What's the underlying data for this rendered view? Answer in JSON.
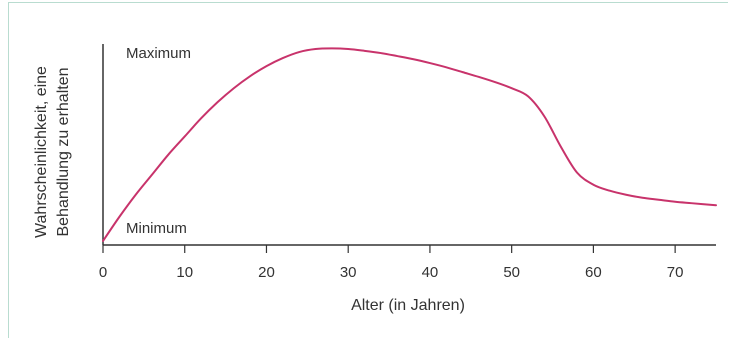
{
  "chart_data": {
    "type": "line",
    "xlabel": "Alter (in Jahren)",
    "ylabel_line1": "Wahrscheinlichkeit, eine",
    "ylabel_line2": "Behandlung zu erhalten",
    "x_ticks": [
      0,
      10,
      20,
      30,
      40,
      50,
      60,
      70
    ],
    "xlim": [
      0,
      75
    ],
    "ylim": [
      0,
      1
    ],
    "y_level_labels": {
      "max": "Maximum",
      "min": "Minimum"
    },
    "series": [
      {
        "color": "#c8336b",
        "points": [
          [
            0,
            0.02
          ],
          [
            2,
            0.14
          ],
          [
            4,
            0.25
          ],
          [
            6,
            0.35
          ],
          [
            8,
            0.45
          ],
          [
            10,
            0.54
          ],
          [
            12,
            0.63
          ],
          [
            14,
            0.71
          ],
          [
            16,
            0.78
          ],
          [
            18,
            0.84
          ],
          [
            20,
            0.89
          ],
          [
            22,
            0.93
          ],
          [
            24,
            0.96
          ],
          [
            26,
            0.975
          ],
          [
            28,
            0.978
          ],
          [
            30,
            0.975
          ],
          [
            32,
            0.966
          ],
          [
            34,
            0.955
          ],
          [
            36,
            0.94
          ],
          [
            38,
            0.924
          ],
          [
            40,
            0.905
          ],
          [
            42,
            0.884
          ],
          [
            44,
            0.86
          ],
          [
            46,
            0.836
          ],
          [
            48,
            0.81
          ],
          [
            50,
            0.78
          ],
          [
            52,
            0.74
          ],
          [
            54,
            0.64
          ],
          [
            56,
            0.49
          ],
          [
            58,
            0.36
          ],
          [
            60,
            0.3
          ],
          [
            62,
            0.27
          ],
          [
            64,
            0.25
          ],
          [
            66,
            0.235
          ],
          [
            68,
            0.225
          ],
          [
            70,
            0.215
          ],
          [
            72,
            0.208
          ],
          [
            75,
            0.198
          ]
        ]
      }
    ]
  }
}
